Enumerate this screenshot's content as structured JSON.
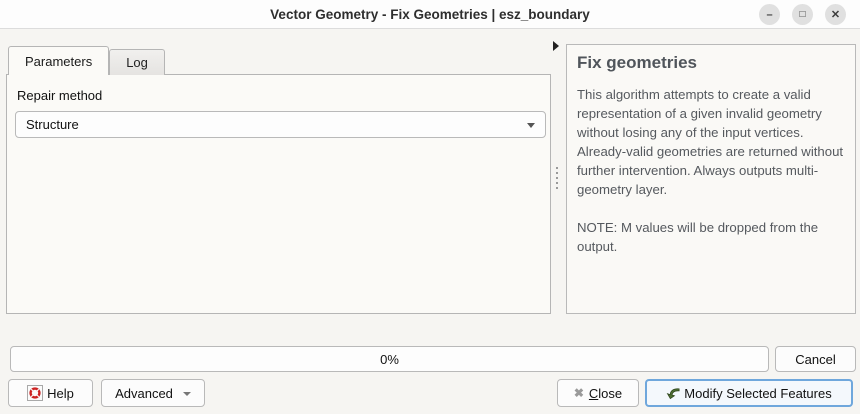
{
  "window": {
    "title": "Vector Geometry - Fix Geometries | esz_boundary",
    "controls": {
      "minimize": "–",
      "maximize": "□",
      "close": "✕"
    }
  },
  "tabs": [
    {
      "label": "Parameters",
      "active": true
    },
    {
      "label": "Log",
      "active": false
    }
  ],
  "parameters": {
    "repair_method_label": "Repair method",
    "repair_method_value": "Structure"
  },
  "help_panel": {
    "title": "Fix geometries",
    "paragraphs": [
      "This algorithm attempts to create a valid representation of a given invalid geometry without losing any of the input vertices. Already-valid geometries are returned without further intervention. Always outputs multi-geometry layer.",
      "NOTE: M values will be dropped from the output."
    ]
  },
  "progress": {
    "value_label": "0%",
    "percent": 0
  },
  "buttons": {
    "cancel": "Cancel",
    "help": "Help",
    "advanced": "Advanced",
    "close_mnemonic": "C",
    "close_rest": "lose",
    "close_icon_glyph": "✖",
    "modify": "Modify Selected Features"
  },
  "colors": {
    "accent_border": "#6fa7dc",
    "help_icon_red": "#cc2222",
    "modify_icon_green": "#4e6f32"
  }
}
